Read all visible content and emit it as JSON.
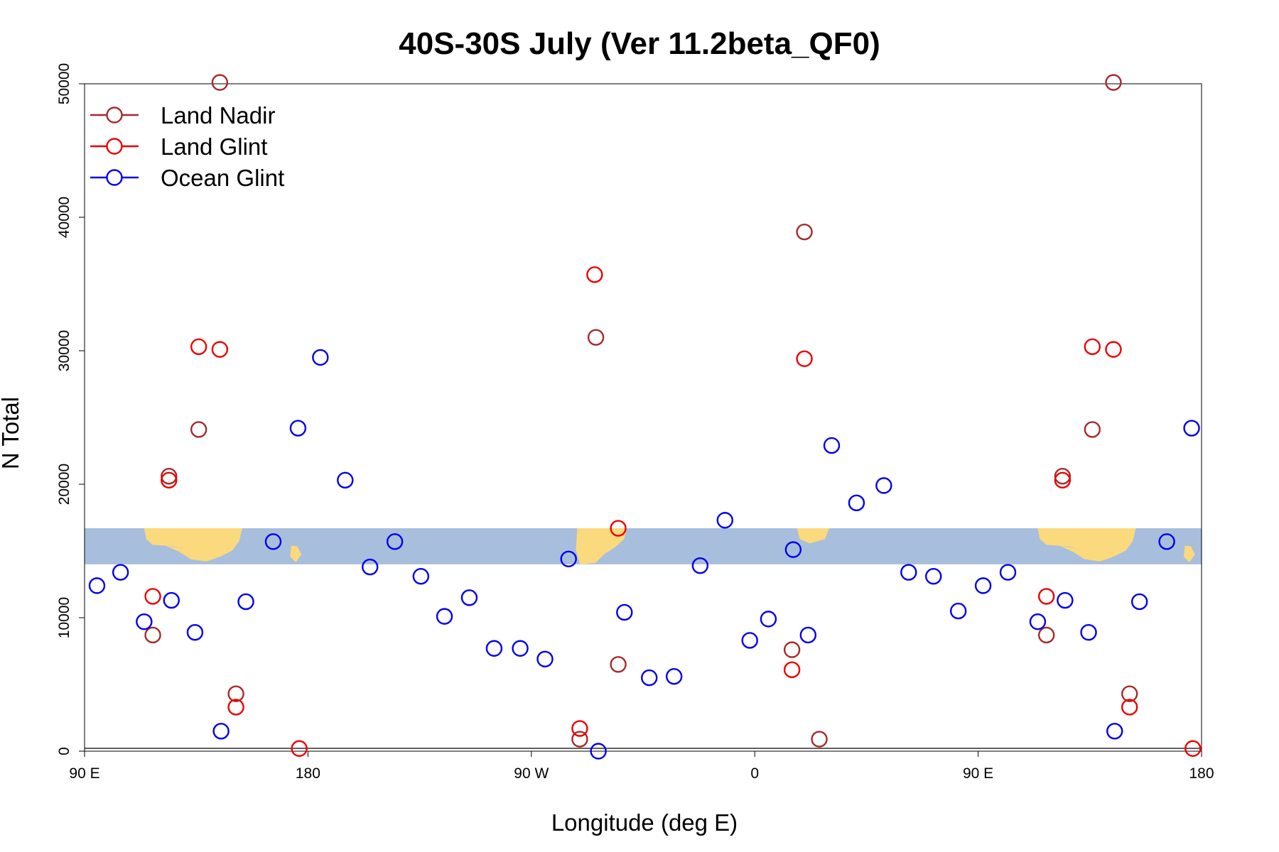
{
  "chart_data": {
    "type": "scatter",
    "title": "40S-30S July (Ver 11.2beta_QF0)",
    "xlabel": "Longitude (deg E)",
    "ylabel": "N Total",
    "xlim": [
      90,
      540
    ],
    "ylim": [
      0,
      50000
    ],
    "x_ticks": [
      {
        "value": 90,
        "label": "90 E"
      },
      {
        "value": 180,
        "label": "180"
      },
      {
        "value": 270,
        "label": "90 W"
      },
      {
        "value": 360,
        "label": "0"
      },
      {
        "value": 450,
        "label": "90 E"
      },
      {
        "value": 540,
        "label": "180"
      }
    ],
    "y_ticks": [
      {
        "value": 0,
        "label": "0"
      },
      {
        "value": 10000,
        "label": "10000"
      },
      {
        "value": 20000,
        "label": "20000"
      },
      {
        "value": 30000,
        "label": "30000"
      },
      {
        "value": 40000,
        "label": "40000"
      },
      {
        "value": 50000,
        "label": "50000"
      }
    ],
    "grid": false,
    "legend_position": "top-left",
    "band": {
      "y_range": [
        14000,
        16700
      ],
      "color": "#a7bedc",
      "land_color": "#fbd97d"
    },
    "series": [
      {
        "name": "Land Nadir",
        "color": "#a52a2a",
        "points": [
          {
            "x": 117.5,
            "y": 8700
          },
          {
            "x": 124,
            "y": 20600
          },
          {
            "x": 136,
            "y": 24100
          },
          {
            "x": 144.5,
            "y": 50100
          },
          {
            "x": 151,
            "y": 4300
          },
          {
            "x": 289.5,
            "y": 900
          },
          {
            "x": 296,
            "y": 31000
          },
          {
            "x": 305,
            "y": 6500
          },
          {
            "x": 375,
            "y": 7600
          },
          {
            "x": 380,
            "y": 38900
          },
          {
            "x": 386,
            "y": 900
          },
          {
            "x": 477.5,
            "y": 8700
          },
          {
            "x": 484,
            "y": 20600
          },
          {
            "x": 496,
            "y": 24100
          },
          {
            "x": 504.5,
            "y": 50100
          },
          {
            "x": 511,
            "y": 4300
          }
        ]
      },
      {
        "name": "Land Glint",
        "color": "#ee0000",
        "points": [
          {
            "x": 117.5,
            "y": 11600
          },
          {
            "x": 124,
            "y": 20300
          },
          {
            "x": 136,
            "y": 30300
          },
          {
            "x": 144.5,
            "y": 30100
          },
          {
            "x": 151,
            "y": 3300
          },
          {
            "x": 176.5,
            "y": 200
          },
          {
            "x": 289.5,
            "y": 1700
          },
          {
            "x": 295.5,
            "y": 35700
          },
          {
            "x": 305,
            "y": 16700
          },
          {
            "x": 375,
            "y": 6100
          },
          {
            "x": 380,
            "y": 29400
          },
          {
            "x": 477.5,
            "y": 11600
          },
          {
            "x": 484,
            "y": 20300
          },
          {
            "x": 496,
            "y": 30300
          },
          {
            "x": 504.5,
            "y": 30100
          },
          {
            "x": 511,
            "y": 3300
          },
          {
            "x": 536.5,
            "y": 200
          }
        ]
      },
      {
        "name": "Ocean Glint",
        "color": "#0000ee",
        "points": [
          {
            "x": 95,
            "y": 12400
          },
          {
            "x": 104.5,
            "y": 13400
          },
          {
            "x": 114,
            "y": 9700
          },
          {
            "x": 125,
            "y": 11300
          },
          {
            "x": 134.5,
            "y": 8900
          },
          {
            "x": 145,
            "y": 1500
          },
          {
            "x": 155,
            "y": 11200
          },
          {
            "x": 166,
            "y": 15700
          },
          {
            "x": 176,
            "y": 24200
          },
          {
            "x": 185,
            "y": 29500
          },
          {
            "x": 195,
            "y": 20300
          },
          {
            "x": 205,
            "y": 13800
          },
          {
            "x": 215,
            "y": 15700
          },
          {
            "x": 225.5,
            "y": 13100
          },
          {
            "x": 235,
            "y": 10100
          },
          {
            "x": 245,
            "y": 11500
          },
          {
            "x": 255,
            "y": 7700
          },
          {
            "x": 265.5,
            "y": 7700
          },
          {
            "x": 275.5,
            "y": 6900
          },
          {
            "x": 285,
            "y": 14400
          },
          {
            "x": 297,
            "y": 0
          },
          {
            "x": 307.5,
            "y": 10400
          },
          {
            "x": 317.5,
            "y": 5500
          },
          {
            "x": 327.5,
            "y": 5600
          },
          {
            "x": 338,
            "y": 13900
          },
          {
            "x": 348,
            "y": 17300
          },
          {
            "x": 358,
            "y": 8300
          },
          {
            "x": 365.5,
            "y": 9900
          },
          {
            "x": 375.5,
            "y": 15100
          },
          {
            "x": 381.5,
            "y": 8700
          },
          {
            "x": 391,
            "y": 22900
          },
          {
            "x": 401,
            "y": 18600
          },
          {
            "x": 412,
            "y": 19900
          },
          {
            "x": 422,
            "y": 13400
          },
          {
            "x": 432,
            "y": 13100
          },
          {
            "x": 442,
            "y": 10500
          },
          {
            "x": 452,
            "y": 12400
          },
          {
            "x": 462,
            "y": 13400
          },
          {
            "x": 474,
            "y": 9700
          },
          {
            "x": 485,
            "y": 11300
          },
          {
            "x": 494.5,
            "y": 8900
          },
          {
            "x": 505,
            "y": 1500
          },
          {
            "x": 515,
            "y": 11200
          },
          {
            "x": 526,
            "y": 15700
          },
          {
            "x": 536,
            "y": 24200
          }
        ]
      }
    ]
  }
}
